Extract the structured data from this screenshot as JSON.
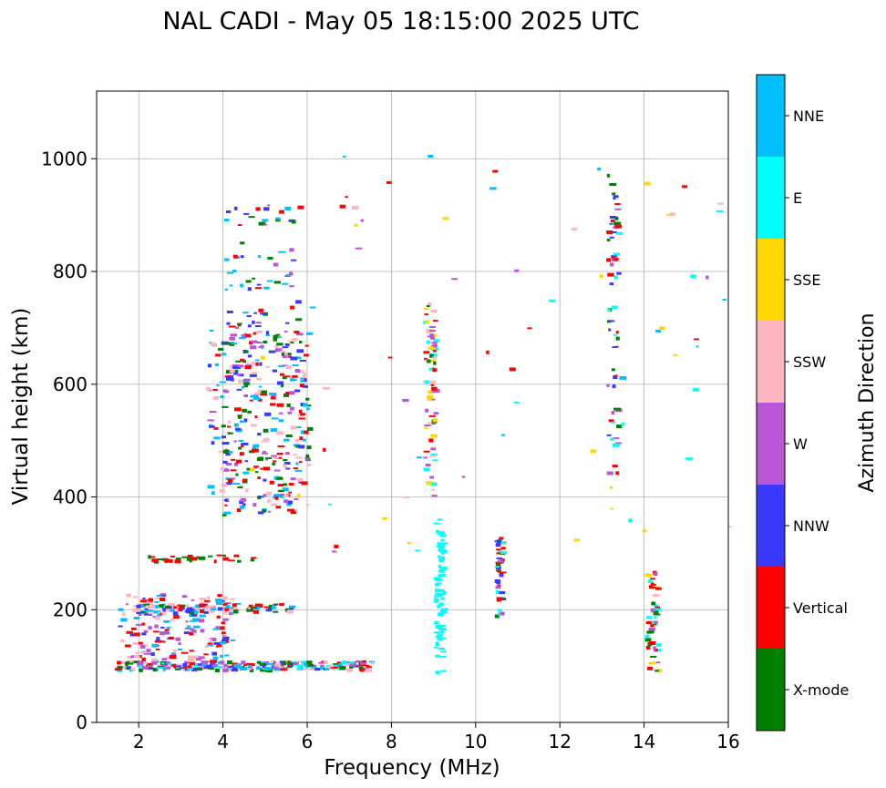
{
  "chart_data": {
    "type": "scatter",
    "title": "NAL CADI - May 05 18:15:00 2025 UTC",
    "xlabel": "Frequency (MHz)",
    "ylabel": "Virtual height (km)",
    "xlim": [
      1.0,
      16.0
    ],
    "ylim": [
      0,
      1120
    ],
    "xticks": [
      2,
      4,
      6,
      8,
      10,
      12,
      14,
      16
    ],
    "yticks": [
      0,
      200,
      400,
      600,
      800,
      1000
    ],
    "grid": true,
    "colorbar": {
      "label": "Azimuth Direction",
      "categories": [
        {
          "name": "X-mode",
          "color": "#008000"
        },
        {
          "name": "Vertical",
          "color": "#ff0000"
        },
        {
          "name": "NNW",
          "color": "#3a3aff"
        },
        {
          "name": "W",
          "color": "#b956d6"
        },
        {
          "name": "SSW",
          "color": "#ffb6c1"
        },
        {
          "name": "SSE",
          "color": "#ffd700"
        },
        {
          "name": "E",
          "color": "#00ffff"
        },
        {
          "name": "NNE",
          "color": "#00bfff"
        }
      ]
    },
    "colors": [
      "#008000",
      "#ff0000",
      "#3a3aff",
      "#b956d6",
      "#ffb6c1",
      "#ffd700",
      "#00ffff",
      "#00bfff"
    ],
    "seed": 20250505,
    "clusters": [
      {
        "name": "e-layer-band",
        "x": [
          1.4,
          7.5
        ],
        "y": [
          95,
          110
        ],
        "n": 260,
        "colors": [
          0,
          1,
          2,
          7,
          6,
          3,
          4
        ]
      },
      {
        "name": "low-band-fill",
        "x": [
          1.5,
          4.2
        ],
        "y": [
          110,
          230
        ],
        "n": 170,
        "colors": [
          1,
          2,
          3,
          4,
          7
        ]
      },
      {
        "name": "e2-band",
        "x": [
          1.8,
          5.6
        ],
        "y": [
          196,
          212
        ],
        "n": 110,
        "colors": [
          1,
          0,
          7,
          2,
          4
        ]
      },
      {
        "name": "e3-band",
        "x": [
          2.2,
          4.7
        ],
        "y": [
          288,
          298
        ],
        "n": 30,
        "colors": [
          1,
          0
        ]
      },
      {
        "name": "f-layer-trace",
        "x": [
          3.6,
          6.0
        ],
        "y": [
          370,
          700
        ],
        "n": 340,
        "colors": [
          1,
          0,
          2,
          3,
          4,
          7
        ]
      },
      {
        "name": "f-layer-upper",
        "x": [
          4.0,
          5.8
        ],
        "y": [
          600,
          920
        ],
        "n": 90,
        "colors": [
          1,
          0,
          7,
          2,
          3
        ]
      },
      {
        "name": "echo-9mhz-high",
        "x": [
          8.75,
          9.0
        ],
        "y": [
          400,
          750
        ],
        "n": 80,
        "colors": [
          6,
          4,
          0,
          1,
          5,
          3
        ]
      },
      {
        "name": "echo-9mhz-low",
        "x": [
          9.0,
          9.2
        ],
        "y": [
          90,
          365
        ],
        "n": 70,
        "colors": [
          6
        ]
      },
      {
        "name": "echo-10.5mhz",
        "x": [
          10.45,
          10.6
        ],
        "y": [
          190,
          330
        ],
        "n": 45,
        "colors": [
          6,
          1,
          0,
          2,
          3
        ]
      },
      {
        "name": "echo-13.2mhz",
        "x": [
          13.1,
          13.35
        ],
        "y": [
          425,
          975
        ],
        "n": 60,
        "colors": [
          2,
          6,
          0,
          3,
          1
        ]
      },
      {
        "name": "echo-14.1mhz",
        "x": [
          14.0,
          14.3
        ],
        "y": [
          90,
          270
        ],
        "n": 50,
        "colors": [
          5,
          6,
          4,
          1,
          3,
          0
        ]
      },
      {
        "name": "scatter-high",
        "x": [
          4.0,
          16.0
        ],
        "y": [
          300,
          1010
        ],
        "n": 70,
        "colors": [
          5,
          6,
          4,
          1,
          3,
          7
        ]
      }
    ]
  }
}
